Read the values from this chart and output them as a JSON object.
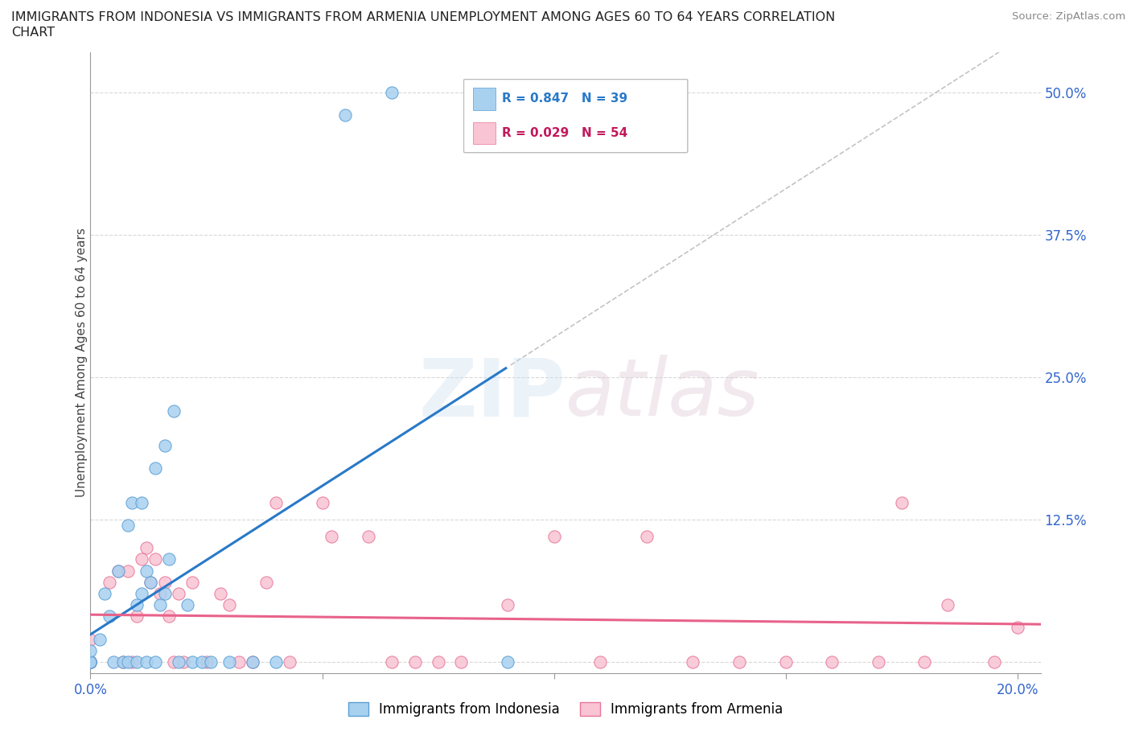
{
  "title_line1": "IMMIGRANTS FROM INDONESIA VS IMMIGRANTS FROM ARMENIA UNEMPLOYMENT AMONG AGES 60 TO 64 YEARS CORRELATION",
  "title_line2": "CHART",
  "source_text": "Source: ZipAtlas.com",
  "ylabel": "Unemployment Among Ages 60 to 64 years",
  "xlim": [
    0.0,
    0.205
  ],
  "ylim": [
    -0.01,
    0.535
  ],
  "xticks": [
    0.0,
    0.05,
    0.1,
    0.15,
    0.2
  ],
  "xticklabels": [
    "0.0%",
    "",
    "",
    "",
    "20.0%"
  ],
  "ytick_positions": [
    0.0,
    0.125,
    0.25,
    0.375,
    0.5
  ],
  "ytick_labels": [
    "",
    "12.5%",
    "25.0%",
    "37.5%",
    "50.0%"
  ],
  "indonesia_color": "#a8d1f0",
  "armenia_color": "#f9c4d4",
  "indonesia_edge": "#5b9fd4",
  "armenia_edge": "#e8769a",
  "regression_indonesia_color": "#2979c8",
  "regression_armenia_color": "#e8628a",
  "R_indonesia": 0.847,
  "N_indonesia": 39,
  "R_armenia": 0.029,
  "N_armenia": 54,
  "legend_indonesia": "Immigrants from Indonesia",
  "legend_armenia": "Immigrants from Armenia",
  "watermark_zip": "ZIP",
  "watermark_atlas": "atlas",
  "grid_color": "#d8d8d8",
  "indo_x": [
    0.0,
    0.0,
    0.0,
    0.0,
    0.0,
    0.002,
    0.003,
    0.004,
    0.005,
    0.006,
    0.007,
    0.008,
    0.008,
    0.009,
    0.01,
    0.01,
    0.011,
    0.011,
    0.012,
    0.012,
    0.013,
    0.014,
    0.014,
    0.015,
    0.016,
    0.016,
    0.017,
    0.018,
    0.019,
    0.021,
    0.022,
    0.024,
    0.026,
    0.03,
    0.035,
    0.04,
    0.055,
    0.065,
    0.09
  ],
  "indo_y": [
    0.0,
    0.0,
    0.0,
    0.0,
    0.01,
    0.02,
    0.06,
    0.04,
    0.0,
    0.08,
    0.0,
    0.0,
    0.12,
    0.14,
    0.0,
    0.05,
    0.06,
    0.14,
    0.0,
    0.08,
    0.07,
    0.0,
    0.17,
    0.05,
    0.06,
    0.19,
    0.09,
    0.22,
    0.0,
    0.05,
    0.0,
    0.0,
    0.0,
    0.0,
    0.0,
    0.0,
    0.48,
    0.5,
    0.0
  ],
  "arm_x": [
    0.0,
    0.0,
    0.0,
    0.0,
    0.0,
    0.0,
    0.0,
    0.0,
    0.004,
    0.006,
    0.007,
    0.008,
    0.009,
    0.01,
    0.011,
    0.012,
    0.013,
    0.014,
    0.015,
    0.016,
    0.017,
    0.018,
    0.019,
    0.02,
    0.022,
    0.025,
    0.028,
    0.03,
    0.032,
    0.035,
    0.038,
    0.04,
    0.043,
    0.05,
    0.052,
    0.06,
    0.065,
    0.07,
    0.075,
    0.08,
    0.09,
    0.1,
    0.11,
    0.12,
    0.13,
    0.14,
    0.15,
    0.16,
    0.17,
    0.175,
    0.18,
    0.185,
    0.195,
    0.2
  ],
  "arm_y": [
    0.0,
    0.0,
    0.0,
    0.0,
    0.0,
    0.0,
    0.0,
    0.02,
    0.07,
    0.08,
    0.0,
    0.08,
    0.0,
    0.04,
    0.09,
    0.1,
    0.07,
    0.09,
    0.06,
    0.07,
    0.04,
    0.0,
    0.06,
    0.0,
    0.07,
    0.0,
    0.06,
    0.05,
    0.0,
    0.0,
    0.07,
    0.14,
    0.0,
    0.14,
    0.11,
    0.11,
    0.0,
    0.0,
    0.0,
    0.0,
    0.05,
    0.11,
    0.0,
    0.11,
    0.0,
    0.0,
    0.0,
    0.0,
    0.0,
    0.14,
    0.0,
    0.05,
    0.0,
    0.03
  ]
}
